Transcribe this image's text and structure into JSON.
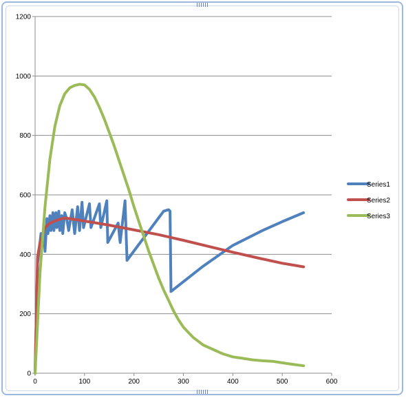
{
  "chart_data": {
    "type": "line",
    "title": "",
    "xlabel": "",
    "ylabel": "",
    "xlim": [
      0,
      600
    ],
    "ylim": [
      0,
      1200
    ],
    "x_ticks": [
      0,
      100,
      200,
      300,
      400,
      500,
      600
    ],
    "y_ticks": [
      0,
      200,
      400,
      600,
      800,
      1000,
      1200
    ],
    "grid": "horizontal",
    "legend_position": "right",
    "series": [
      {
        "name": "Series1",
        "color": "#4f81bd",
        "points": [
          [
            0,
            0
          ],
          [
            5,
            370
          ],
          [
            8,
            410
          ],
          [
            12,
            470
          ],
          [
            14,
            440
          ],
          [
            18,
            480
          ],
          [
            20,
            410
          ],
          [
            24,
            520
          ],
          [
            26,
            470
          ],
          [
            30,
            530
          ],
          [
            32,
            480
          ],
          [
            36,
            540
          ],
          [
            38,
            480
          ],
          [
            42,
            540
          ],
          [
            44,
            490
          ],
          [
            48,
            545
          ],
          [
            50,
            480
          ],
          [
            54,
            530
          ],
          [
            56,
            470
          ],
          [
            60,
            540
          ],
          [
            64,
            520
          ],
          [
            68,
            480
          ],
          [
            75,
            550
          ],
          [
            80,
            470
          ],
          [
            86,
            560
          ],
          [
            90,
            480
          ],
          [
            95,
            575
          ],
          [
            98,
            490
          ],
          [
            110,
            570
          ],
          [
            113,
            490
          ],
          [
            130,
            570
          ],
          [
            133,
            490
          ],
          [
            145,
            580
          ],
          [
            147,
            440
          ],
          [
            168,
            505
          ],
          [
            172,
            440
          ],
          [
            182,
            580
          ],
          [
            186,
            380
          ],
          [
            260,
            545
          ],
          [
            270,
            550
          ],
          [
            273,
            545
          ],
          [
            275,
            275
          ],
          [
            340,
            360
          ],
          [
            400,
            430
          ],
          [
            460,
            480
          ],
          [
            500,
            510
          ],
          [
            543,
            540
          ]
        ]
      },
      {
        "name": "Series2",
        "color": "#c0504d",
        "points": [
          [
            0,
            0
          ],
          [
            5,
            390
          ],
          [
            10,
            440
          ],
          [
            20,
            490
          ],
          [
            30,
            505
          ],
          [
            40,
            512
          ],
          [
            50,
            518
          ],
          [
            60,
            522
          ],
          [
            70,
            520
          ],
          [
            100,
            512
          ],
          [
            150,
            498
          ],
          [
            200,
            482
          ],
          [
            250,
            466
          ],
          [
            300,
            447
          ],
          [
            350,
            427
          ],
          [
            400,
            407
          ],
          [
            450,
            388
          ],
          [
            500,
            370
          ],
          [
            543,
            358
          ]
        ]
      },
      {
        "name": "Series3",
        "color": "#9bbb59",
        "points": [
          [
            0,
            0
          ],
          [
            10,
            340
          ],
          [
            20,
            560
          ],
          [
            30,
            720
          ],
          [
            40,
            830
          ],
          [
            50,
            900
          ],
          [
            60,
            940
          ],
          [
            70,
            960
          ],
          [
            80,
            968
          ],
          [
            90,
            972
          ],
          [
            100,
            970
          ],
          [
            110,
            955
          ],
          [
            120,
            930
          ],
          [
            130,
            895
          ],
          [
            140,
            855
          ],
          [
            150,
            810
          ],
          [
            160,
            765
          ],
          [
            170,
            715
          ],
          [
            180,
            665
          ],
          [
            190,
            615
          ],
          [
            200,
            560
          ],
          [
            210,
            510
          ],
          [
            220,
            460
          ],
          [
            230,
            410
          ],
          [
            240,
            365
          ],
          [
            250,
            320
          ],
          [
            260,
            280
          ],
          [
            270,
            245
          ],
          [
            280,
            210
          ],
          [
            290,
            180
          ],
          [
            300,
            155
          ],
          [
            320,
            120
          ],
          [
            340,
            95
          ],
          [
            360,
            80
          ],
          [
            380,
            65
          ],
          [
            400,
            55
          ],
          [
            420,
            50
          ],
          [
            440,
            45
          ],
          [
            460,
            42
          ],
          [
            480,
            40
          ],
          [
            500,
            35
          ],
          [
            520,
            30
          ],
          [
            543,
            25
          ]
        ]
      }
    ]
  }
}
